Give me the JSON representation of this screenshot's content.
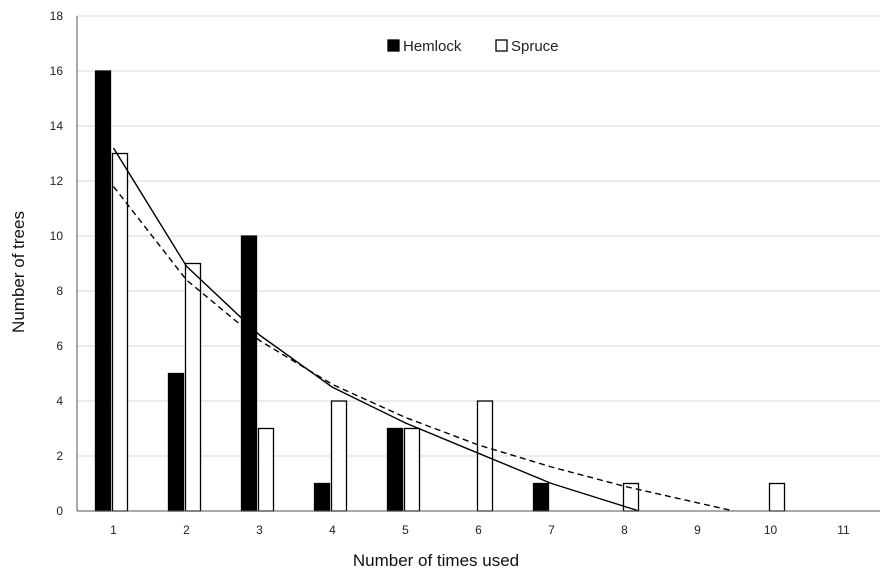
{
  "chart_data": {
    "type": "bar",
    "title": "",
    "xlabel": "Number of times used",
    "ylabel": "Number of trees",
    "categories": [
      "1",
      "2",
      "3",
      "4",
      "5",
      "6",
      "7",
      "8",
      "9",
      "10",
      "11"
    ],
    "ylim": [
      0,
      18
    ],
    "yticks": [
      0,
      2,
      4,
      6,
      8,
      10,
      12,
      14,
      16,
      18
    ],
    "grid": true,
    "legend_position": "top-center",
    "series": [
      {
        "name": "Hemlock",
        "fill": "#000000",
        "values": [
          16,
          5,
          10,
          1,
          3,
          0,
          1,
          0,
          0,
          0,
          0
        ]
      },
      {
        "name": "Spruce",
        "fill": "#ffffff",
        "values": [
          13,
          9,
          3,
          4,
          3,
          4,
          0,
          1,
          0,
          1,
          0
        ]
      }
    ],
    "trendlines": [
      {
        "series": "Hemlock",
        "style": "solid",
        "points": [
          [
            1,
            13.2
          ],
          [
            2,
            8.9
          ],
          [
            3,
            6.4
          ],
          [
            4,
            4.5
          ],
          [
            5,
            3.2
          ],
          [
            6,
            2.1
          ],
          [
            7,
            1.0
          ],
          [
            8.2,
            0.0
          ]
        ]
      },
      {
        "series": "Spruce",
        "style": "dashed",
        "points": [
          [
            1,
            11.8
          ],
          [
            2,
            8.4
          ],
          [
            3,
            6.2
          ],
          [
            4,
            4.6
          ],
          [
            5,
            3.4
          ],
          [
            6,
            2.4
          ],
          [
            7,
            1.6
          ],
          [
            8,
            0.9
          ],
          [
            9,
            0.3
          ],
          [
            9.5,
            0.0
          ]
        ]
      }
    ]
  }
}
